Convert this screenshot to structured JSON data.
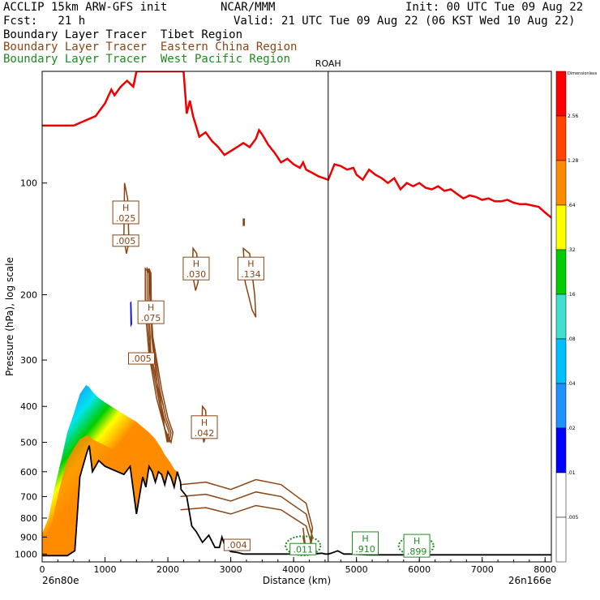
{
  "header": {
    "title_left": "ACCLIP 15km ARW-GFS init",
    "center": "NCAR/MMM",
    "init": "Init: 00 UTC Tue 09 Aug 22",
    "fcst": "Fcst:   21 h",
    "valid": "Valid: 21 UTC Tue 09 Aug 22 (06 KST Wed 10 Aug 22)",
    "tracer1": "Boundary Layer Tracer  Tibet Region",
    "tracer2": "Boundary Layer Tracer  Eastern China Region",
    "tracer3": "Boundary Layer Tracer  West Pacific Region"
  },
  "colors": {
    "tibet_fill": [
      "#0000ff",
      "#1e90ff",
      "#00e5ee",
      "#00cd00",
      "#ffff00",
      "#ff8c00",
      "#ff4500"
    ],
    "eastern_china": "#8B4513",
    "west_pacific": "#228b22",
    "tropopause": "#ee0000",
    "terrain": "#000000"
  },
  "chart_data": {
    "type": "cross-section",
    "xlabel": "Distance (km)",
    "ylabel": "Pressure (hPa), log scale",
    "xlim": [
      0,
      8100
    ],
    "ylim": [
      1050,
      50
    ],
    "yscale": "log",
    "x_ticks": [
      "0",
      "1000",
      "2000",
      "3000",
      "4000",
      "5000",
      "6000",
      "7000",
      "8000"
    ],
    "x_tick_values": [
      0,
      1000,
      2000,
      3000,
      4000,
      5000,
      6000,
      7000,
      8000
    ],
    "y_ticks": [
      "100",
      "200",
      "300",
      "400",
      "500",
      "600",
      "700",
      "800",
      "900",
      "1000"
    ],
    "y_tick_values": [
      100,
      200,
      300,
      400,
      500,
      600,
      700,
      800,
      900,
      1000
    ],
    "left_endpoint": "26n80e",
    "right_endpoint": "26n166e",
    "station": {
      "label": "ROAH",
      "x": 4550
    },
    "colorbar": {
      "title": "Dimensionless",
      "labels": [
        ".005",
        ".01",
        ".02",
        ".04",
        ".08",
        ".16",
        ".32",
        ".64",
        "1.28",
        "2.56"
      ],
      "colors": [
        "#ffffff",
        "#ffffff",
        "#0000ff",
        "#1e90ff",
        "#00bfff",
        "#40e0d0",
        "#00cd00",
        "#ffff00",
        "#ff8c00",
        "#ff4500",
        "#ff0000"
      ]
    },
    "labels": [
      {
        "H": "H",
        "v": ".025",
        "x": 1330,
        "p": 120,
        "color": "brown"
      },
      {
        "v": ".005",
        "x": 1330,
        "p": 143,
        "color": "brown"
      },
      {
        "H": "H",
        "v": ".030",
        "x": 2450,
        "p": 170,
        "color": "brown"
      },
      {
        "H": "H",
        "v": ".134",
        "x": 3320,
        "p": 170,
        "color": "brown"
      },
      {
        "H": "H",
        "v": ".075",
        "x": 1730,
        "p": 223,
        "color": "brown"
      },
      {
        "v": ".005",
        "x": 1580,
        "p": 297,
        "color": "brown"
      },
      {
        "H": "H",
        "v": ".042",
        "x": 2580,
        "p": 455,
        "color": "brown"
      },
      {
        "v": ".004",
        "x": 3100,
        "p": 945,
        "color": "brown"
      },
      {
        "v": ".011",
        "x": 4150,
        "p": 970,
        "color": "green"
      },
      {
        "H": "H",
        "v": ".910",
        "x": 5140,
        "p": 935,
        "color": "green"
      },
      {
        "H": "H",
        "v": ".899",
        "x": 5960,
        "p": 950,
        "color": "green"
      }
    ],
    "tropopause": {
      "x": [
        0,
        300,
        500,
        850,
        1000,
        1100,
        1150,
        1250,
        1350,
        1450,
        1500,
        1600,
        1700,
        1780,
        1850,
        1920,
        1980,
        2050,
        2100,
        2150,
        2200,
        2250,
        2300,
        2350,
        2400,
        2500,
        2600,
        2700,
        2800,
        2900,
        3000,
        3100,
        3200,
        3300,
        3400,
        3450,
        3500,
        3600,
        3700,
        3800,
        3900,
        4000,
        4100,
        4150,
        4200,
        4300,
        4400,
        4550,
        4650,
        4750,
        4850,
        4950,
        5000,
        5100,
        5200,
        5300,
        5400,
        5500,
        5600,
        5700,
        5800,
        5900,
        6000,
        6100,
        6200,
        6300,
        6400,
        6500,
        6600,
        6700,
        6800,
        6900,
        7000,
        7100,
        7200,
        7300,
        7400,
        7500,
        7600,
        7700,
        7800,
        7900,
        8000,
        8100
      ],
      "p": [
        70,
        70,
        70,
        66,
        61,
        56,
        58,
        55,
        53,
        55,
        50,
        50,
        50,
        50,
        50,
        50,
        50,
        50,
        50,
        50,
        50,
        50,
        65,
        60,
        66,
        75,
        73,
        77,
        80,
        84,
        82,
        80,
        78,
        80,
        76,
        72,
        74,
        79,
        83,
        88,
        86,
        89,
        91,
        88,
        92,
        94,
        96,
        98,
        89,
        90,
        92,
        91,
        95,
        98,
        92,
        95,
        97,
        100,
        97,
        104,
        100,
        102,
        100,
        103,
        104,
        102,
        105,
        104,
        107,
        110,
        108,
        109,
        111,
        110,
        112,
        112,
        111,
        113,
        114,
        114,
        115,
        116,
        120,
        124
      ]
    },
    "terrain": {
      "x": [
        0,
        200,
        400,
        520,
        600,
        700,
        750,
        800,
        900,
        1000,
        1100,
        1200,
        1300,
        1400,
        1500,
        1600,
        1650,
        1700,
        1750,
        1800,
        1850,
        1900,
        1950,
        2000,
        2050,
        2100,
        2150,
        2200,
        2210,
        2300,
        2380,
        2450,
        2550,
        2650,
        2750,
        2820,
        2860,
        2900,
        2950,
        3000,
        3100,
        3200,
        3400,
        3600,
        4000,
        4300,
        4450,
        4500,
        4550,
        4600,
        4700,
        4800,
        4900,
        5200,
        6000,
        7000,
        8000,
        8100
      ],
      "p": [
        1010,
        1010,
        1010,
        980,
        620,
        540,
        510,
        600,
        560,
        580,
        590,
        600,
        610,
        580,
        780,
        620,
        660,
        580,
        600,
        640,
        600,
        610,
        650,
        600,
        620,
        660,
        600,
        640,
        670,
        700,
        840,
        870,
        930,
        890,
        960,
        960,
        900,
        940,
        970,
        985,
        990,
        1000,
        1000,
        1000,
        1000,
        1000,
        995,
        1000,
        1000,
        995,
        980,
        1000,
        1000,
        1005,
        1005,
        1005,
        1005,
        1005
      ]
    }
  }
}
